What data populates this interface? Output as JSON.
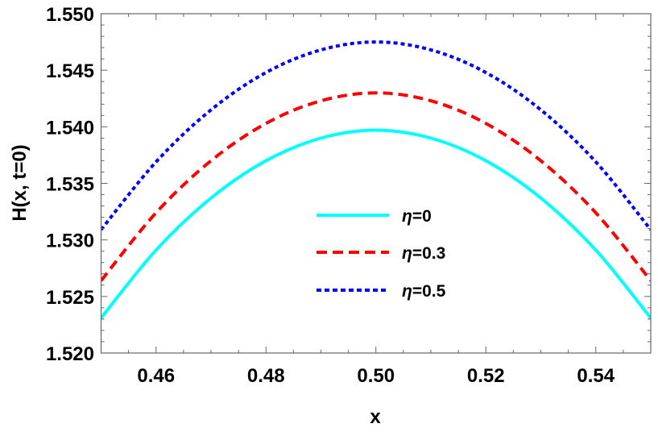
{
  "chart_data": {
    "type": "line",
    "title": "",
    "xlabel": "x",
    "ylabel": "H(x, t=0)",
    "xlim": [
      0.45,
      0.55
    ],
    "ylim": [
      1.52,
      1.55
    ],
    "x_ticks": [
      "0.46",
      "0.48",
      "0.50",
      "0.52",
      "0.54"
    ],
    "y_ticks": [
      "1.520",
      "1.525",
      "1.530",
      "1.535",
      "1.540",
      "1.545",
      "1.550"
    ],
    "grid": false,
    "legend_position": "center",
    "x": [
      0.45,
      0.46,
      0.47,
      0.48,
      0.49,
      0.5,
      0.51,
      0.52,
      0.53,
      0.54,
      0.55
    ],
    "series": [
      {
        "name": "η=0",
        "color": "#00FFFF",
        "style": "solid",
        "values": [
          1.5231,
          1.5291,
          1.5337,
          1.537,
          1.539,
          1.5397,
          1.539,
          1.537,
          1.5337,
          1.5291,
          1.5231
        ]
      },
      {
        "name": "η=0.3",
        "color": "#FF0000",
        "style": "dashed",
        "values": [
          1.5264,
          1.5324,
          1.537,
          1.5403,
          1.5423,
          1.543,
          1.5423,
          1.5403,
          1.537,
          1.5324,
          1.5264
        ]
      },
      {
        "name": "η=0.5",
        "color": "#0000FF",
        "style": "dotted",
        "values": [
          1.5309,
          1.5369,
          1.5415,
          1.5448,
          1.5468,
          1.5475,
          1.5468,
          1.5448,
          1.5415,
          1.5369,
          1.5309
        ]
      }
    ]
  }
}
